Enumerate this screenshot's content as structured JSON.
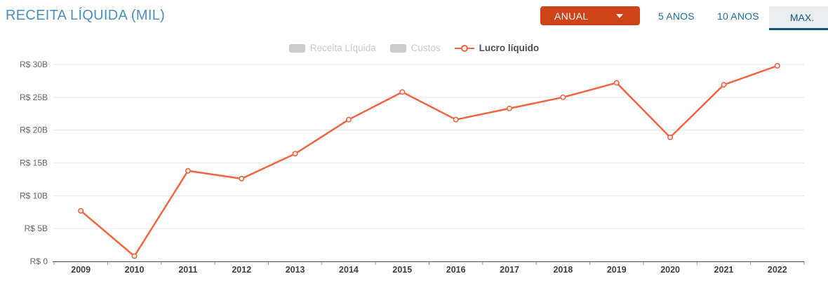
{
  "header": {
    "title": "RECEITA LÍQUIDA (MIL)",
    "period_dropdown": {
      "label": "ANUAL",
      "icon": "chevron-down-icon"
    },
    "range_buttons": [
      {
        "label": "5 ANOS",
        "active": false
      },
      {
        "label": "10 ANOS",
        "active": false
      },
      {
        "label": "MAX.",
        "active": true
      }
    ]
  },
  "legend": {
    "items": [
      {
        "label": "Receita Líquida",
        "state": "disabled",
        "marker": "gray-pill"
      },
      {
        "label": "Custos",
        "state": "disabled",
        "marker": "gray-pill"
      },
      {
        "label": "Lucro líquido",
        "state": "active",
        "marker": "orange-line-circle"
      }
    ]
  },
  "colors": {
    "title_blue": "#4a8fc1",
    "accent_orange": "#ce4317",
    "line_orange": "#f4643e",
    "link_blue": "#1e6fa8",
    "tab_active_bg": "#e9edf0",
    "tab_active_text": "#14587c",
    "tab_underline": "#0c5676",
    "grid_gray": "#e6e6e6",
    "axis_dark": "#4d4d4d",
    "ytick_label": "#666666",
    "xtick_label": "#3f3f3f",
    "legend_disabled": "#c9c9c9",
    "marker_fill": "#ffffff"
  },
  "chart_data": {
    "type": "line",
    "title": "RECEITA LÍQUIDA (MIL)",
    "x": [
      2009,
      2010,
      2011,
      2012,
      2013,
      2014,
      2015,
      2016,
      2017,
      2018,
      2019,
      2020,
      2021,
      2022
    ],
    "series": [
      {
        "name": "Receita Líquida",
        "visible": false,
        "values_billions": []
      },
      {
        "name": "Custos",
        "visible": false,
        "values_billions": []
      },
      {
        "name": "Lucro líquido",
        "visible": true,
        "values_billions": [
          7.7,
          0.8,
          13.8,
          12.6,
          16.4,
          21.6,
          25.8,
          21.6,
          23.3,
          25.0,
          27.2,
          18.9,
          26.9,
          29.8
        ]
      }
    ],
    "ylabel_ticks": [
      "R$ 0",
      "R$ 5B",
      "R$ 10B",
      "R$ 15B",
      "R$ 20B",
      "R$ 25B",
      "R$ 30B"
    ],
    "ylim": [
      0,
      30
    ],
    "ytick_step": 5,
    "currency_unit": "R$ billions",
    "grid": true,
    "legend_position": "top-center"
  }
}
